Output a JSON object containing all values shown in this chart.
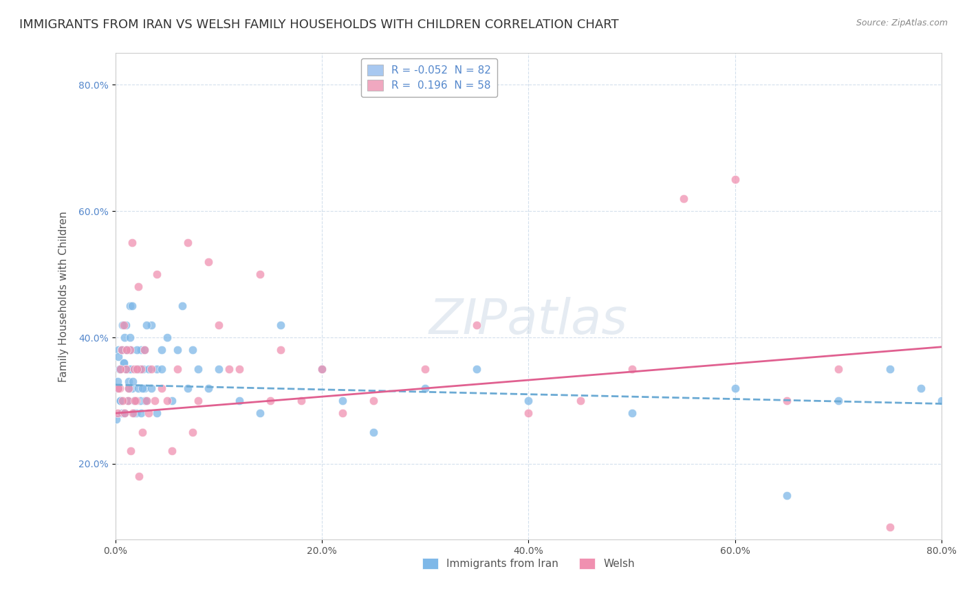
{
  "title": "IMMIGRANTS FROM IRAN VS WELSH FAMILY HOUSEHOLDS WITH CHILDREN CORRELATION CHART",
  "source": "Source: ZipAtlas.com",
  "ylabel": "Family Households with Children",
  "xlim": [
    0.0,
    80.0
  ],
  "ylim": [
    8.0,
    85.0
  ],
  "legend_entries": [
    {
      "label": "R = -0.052  N = 82",
      "color": "#a8c8f0",
      "series": "iran"
    },
    {
      "label": "R =  0.196  N = 58",
      "color": "#f0a8c0",
      "series": "welsh"
    }
  ],
  "watermark": "ZIPatlas",
  "iran_scatter_x": [
    0.2,
    0.3,
    0.4,
    0.5,
    0.6,
    0.8,
    0.9,
    1.0,
    1.1,
    1.2,
    1.3,
    1.4,
    1.5,
    1.6,
    1.8,
    2.0,
    2.2,
    2.5,
    2.8,
    3.0,
    3.5,
    4.0,
    4.5,
    5.0,
    6.0,
    7.0,
    8.0,
    0.1,
    0.2,
    0.3,
    0.4,
    0.5,
    0.6,
    0.7,
    0.8,
    0.9,
    1.0,
    1.1,
    1.2,
    1.3,
    1.4,
    1.5,
    1.6,
    1.7,
    1.8,
    1.9,
    2.0,
    2.1,
    2.2,
    2.3,
    2.4,
    2.5,
    2.6,
    2.7,
    2.8,
    2.9,
    3.0,
    3.2,
    3.5,
    4.0,
    4.5,
    5.5,
    6.5,
    7.5,
    9.0,
    10.0,
    12.0,
    14.0,
    16.0,
    20.0,
    22.0,
    25.0,
    30.0,
    35.0,
    40.0,
    50.0,
    60.0,
    65.0,
    70.0,
    75.0,
    78.0,
    80.0
  ],
  "iran_scatter_y": [
    32,
    38,
    35,
    30,
    28,
    36,
    40,
    42,
    38,
    35,
    33,
    45,
    38,
    32,
    30,
    28,
    35,
    38,
    32,
    30,
    42,
    35,
    38,
    40,
    38,
    32,
    35,
    27,
    33,
    37,
    35,
    30,
    38,
    42,
    36,
    28,
    35,
    38,
    30,
    32,
    40,
    35,
    45,
    33,
    28,
    30,
    35,
    38,
    32,
    35,
    30,
    28,
    32,
    35,
    38,
    30,
    42,
    35,
    32,
    28,
    35,
    30,
    45,
    38,
    32,
    35,
    30,
    28,
    42,
    35,
    30,
    25,
    32,
    35,
    30,
    28,
    32,
    15,
    30,
    35,
    32,
    30
  ],
  "welsh_scatter_x": [
    0.2,
    0.4,
    0.6,
    0.8,
    1.0,
    1.2,
    1.4,
    1.6,
    1.8,
    2.0,
    2.2,
    2.5,
    2.8,
    3.0,
    3.5,
    4.0,
    4.5,
    5.0,
    6.0,
    7.0,
    8.0,
    9.0,
    10.0,
    12.0,
    14.0,
    16.0,
    18.0,
    20.0,
    25.0,
    30.0,
    35.0,
    40.0,
    45.0,
    50.0,
    55.0,
    60.0,
    65.0,
    70.0,
    0.3,
    0.5,
    0.7,
    0.9,
    1.1,
    1.3,
    1.5,
    1.7,
    1.9,
    2.1,
    2.3,
    2.6,
    3.2,
    3.8,
    5.5,
    7.5,
    11.0,
    15.0,
    22.0,
    75.0
  ],
  "welsh_scatter_y": [
    28,
    32,
    38,
    42,
    35,
    30,
    38,
    55,
    35,
    30,
    48,
    35,
    38,
    30,
    35,
    50,
    32,
    30,
    35,
    55,
    30,
    52,
    42,
    35,
    50,
    38,
    30,
    35,
    30,
    35,
    42,
    28,
    30,
    35,
    62,
    65,
    30,
    35,
    32,
    35,
    30,
    28,
    38,
    32,
    22,
    28,
    30,
    35,
    18,
    25,
    28,
    30,
    22,
    25,
    35,
    30,
    28,
    10
  ],
  "iran_line_x": [
    0.0,
    80.0
  ],
  "iran_line_y_start": 32.5,
  "iran_line_y_end": 29.5,
  "welsh_line_x": [
    0.0,
    80.0
  ],
  "welsh_line_y_start": 28.0,
  "welsh_line_y_end": 38.5,
  "scatter_size": 80,
  "iran_dot_color": "#7eb8e8",
  "welsh_dot_color": "#f090b0",
  "iran_line_color": "#6baad4",
  "welsh_line_color": "#e06090",
  "background_color": "#ffffff",
  "grid_color": "#c8d8e8",
  "title_fontsize": 13,
  "axis_label_fontsize": 11,
  "tick_fontsize": 10
}
